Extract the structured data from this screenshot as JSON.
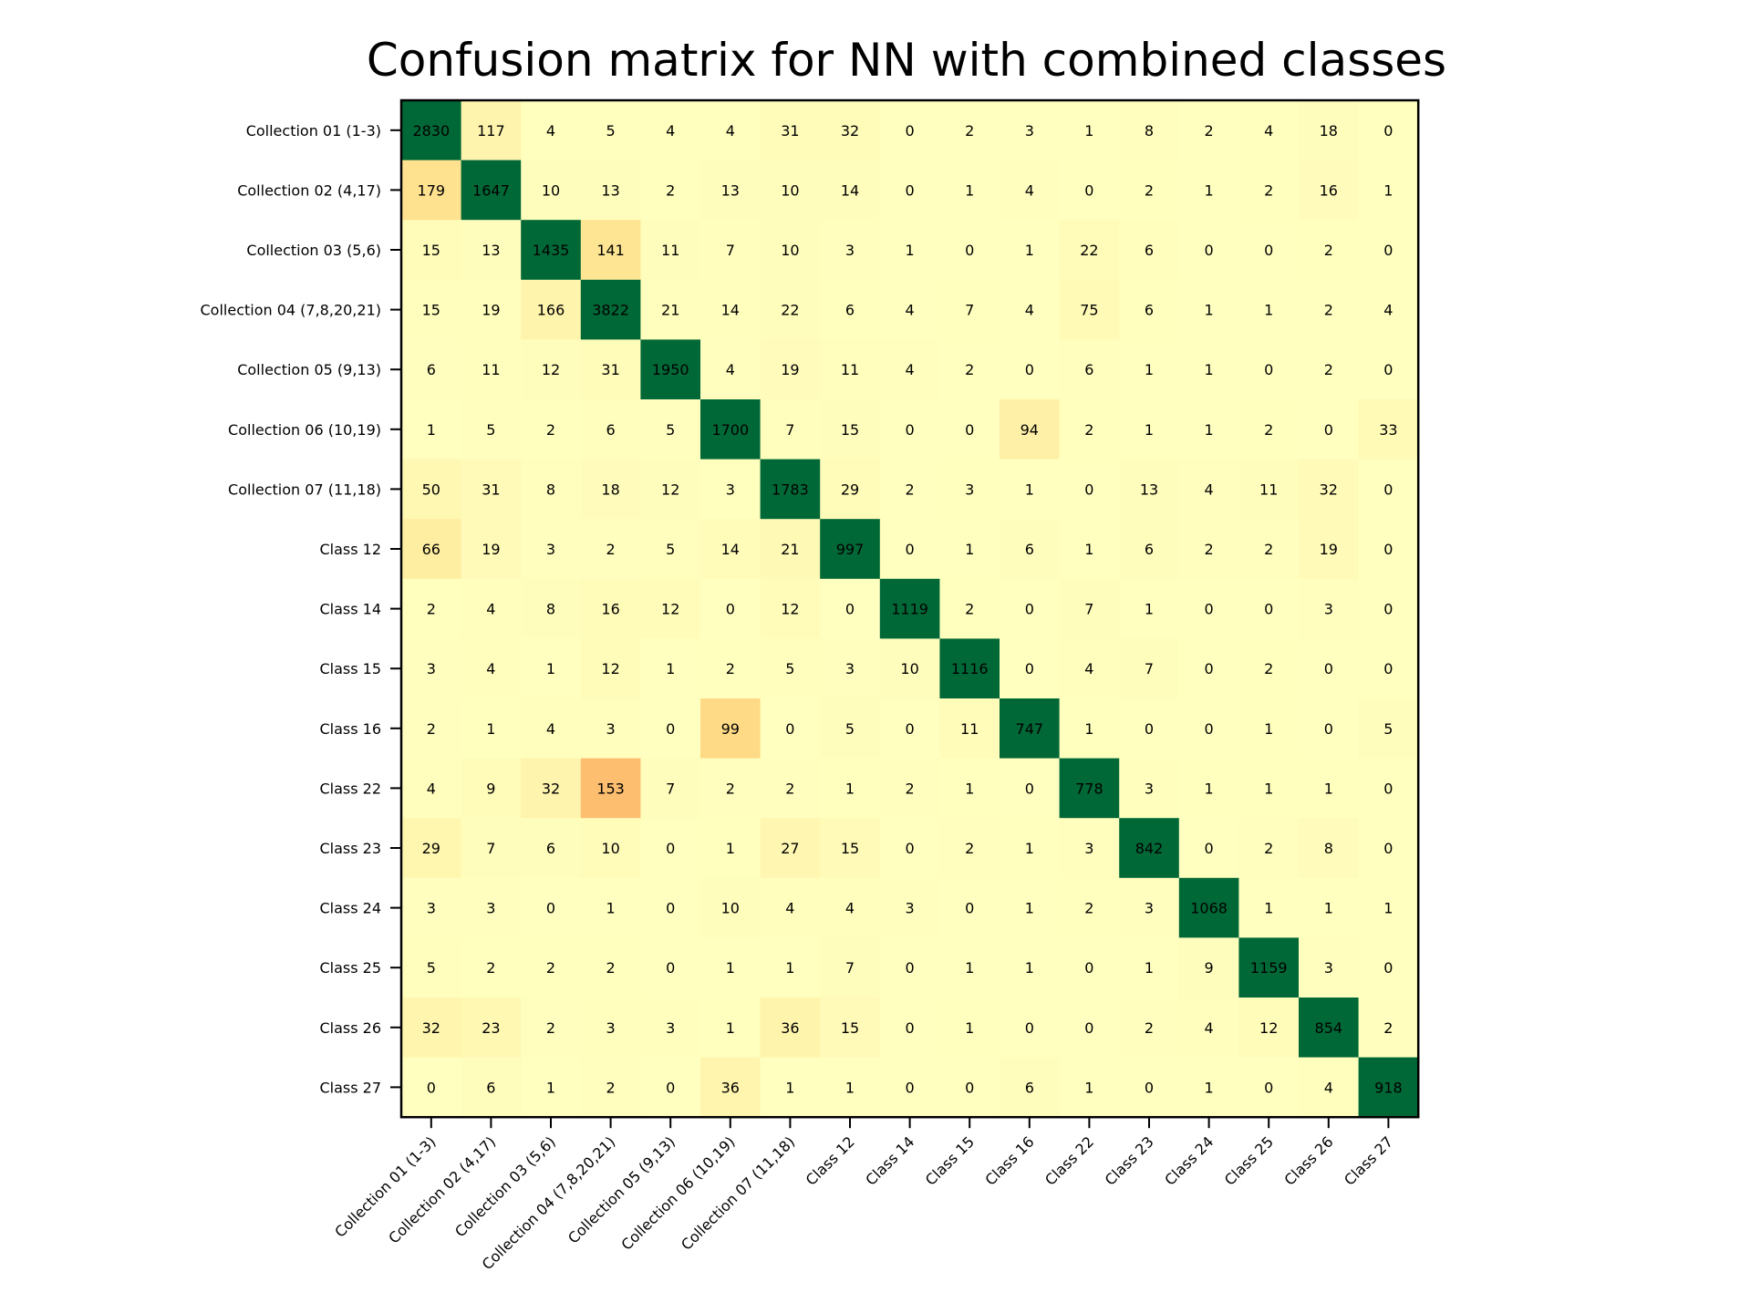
{
  "chart_data": {
    "type": "heatmap",
    "title": "Confusion matrix for NN with combined classes",
    "xlabel": "",
    "ylabel": "",
    "colormap": "RdYlGn",
    "grid": false,
    "row_labels": [
      "Collection 01 (1-3)",
      "Collection 02 (4,17)",
      "Collection 03 (5,6)",
      "Collection 04 (7,8,20,21)",
      "Collection 05 (9,13)",
      "Collection 06 (10,19)",
      "Collection 07 (11,18)",
      "Class 12",
      "Class 14",
      "Class 15",
      "Class 16",
      "Class 22",
      "Class 23",
      "Class 24",
      "Class 25",
      "Class 26",
      "Class 27"
    ],
    "col_labels": [
      "Collection 01 (1-3)",
      "Collection 02 (4,17)",
      "Collection 03 (5,6)",
      "Collection 04 (7,8,20,21)",
      "Collection 05 (9,13)",
      "Collection 06 (10,19)",
      "Collection 07 (11,18)",
      "Class 12",
      "Class 14",
      "Class 15",
      "Class 16",
      "Class 22",
      "Class 23",
      "Class 24",
      "Class 25",
      "Class 26",
      "Class 27"
    ],
    "values": [
      [
        2830,
        117,
        4,
        5,
        4,
        4,
        31,
        32,
        0,
        2,
        3,
        1,
        8,
        2,
        4,
        18,
        0
      ],
      [
        179,
        1647,
        10,
        13,
        2,
        13,
        10,
        14,
        0,
        1,
        4,
        0,
        2,
        1,
        2,
        16,
        1
      ],
      [
        15,
        13,
        1435,
        141,
        11,
        7,
        10,
        3,
        1,
        0,
        1,
        22,
        6,
        0,
        0,
        2,
        0
      ],
      [
        15,
        19,
        166,
        3822,
        21,
        14,
        22,
        6,
        4,
        7,
        4,
        75,
        6,
        1,
        1,
        2,
        4
      ],
      [
        6,
        11,
        12,
        31,
        1950,
        4,
        19,
        11,
        4,
        2,
        0,
        6,
        1,
        1,
        0,
        2,
        0
      ],
      [
        1,
        5,
        2,
        6,
        5,
        1700,
        7,
        15,
        0,
        0,
        94,
        2,
        1,
        1,
        2,
        0,
        33
      ],
      [
        50,
        31,
        8,
        18,
        12,
        3,
        1783,
        29,
        2,
        3,
        1,
        0,
        13,
        4,
        11,
        32,
        0
      ],
      [
        66,
        19,
        3,
        2,
        5,
        14,
        21,
        997,
        0,
        1,
        6,
        1,
        6,
        2,
        2,
        19,
        0
      ],
      [
        2,
        4,
        8,
        16,
        12,
        0,
        12,
        0,
        1119,
        2,
        0,
        7,
        1,
        0,
        0,
        3,
        0
      ],
      [
        3,
        4,
        1,
        12,
        1,
        2,
        5,
        3,
        10,
        1116,
        0,
        4,
        7,
        0,
        2,
        0,
        0
      ],
      [
        2,
        1,
        4,
        3,
        0,
        99,
        0,
        5,
        0,
        11,
        747,
        1,
        0,
        0,
        1,
        0,
        5
      ],
      [
        4,
        9,
        32,
        153,
        7,
        2,
        2,
        1,
        2,
        1,
        0,
        778,
        3,
        1,
        1,
        1,
        0
      ],
      [
        29,
        7,
        6,
        10,
        0,
        1,
        27,
        15,
        0,
        2,
        1,
        3,
        842,
        0,
        2,
        8,
        0
      ],
      [
        3,
        3,
        0,
        1,
        0,
        10,
        4,
        4,
        3,
        0,
        1,
        2,
        3,
        1068,
        1,
        1,
        1
      ],
      [
        5,
        2,
        2,
        2,
        0,
        1,
        1,
        7,
        0,
        1,
        1,
        0,
        1,
        9,
        1159,
        3,
        0
      ],
      [
        32,
        23,
        2,
        3,
        3,
        1,
        36,
        15,
        0,
        1,
        0,
        0,
        2,
        4,
        12,
        854,
        2
      ],
      [
        0,
        6,
        1,
        2,
        0,
        36,
        1,
        1,
        0,
        0,
        6,
        1,
        0,
        1,
        0,
        4,
        918
      ]
    ],
    "colors": {
      "diagonal": "#006837",
      "background": "#ffffbf",
      "frame": "#000000"
    }
  }
}
